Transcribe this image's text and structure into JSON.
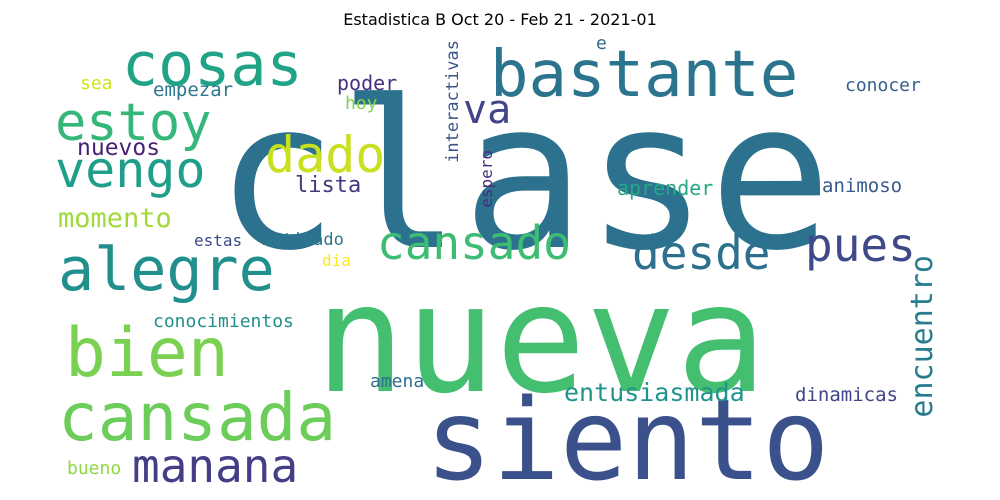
{
  "title": "Estadistica B Oct 20 - Feb 21 - 2021-01",
  "words": [
    {
      "text": "clase",
      "color": "#2c728e"
    },
    {
      "text": "nueva",
      "color": "#44bf70"
    },
    {
      "text": "siento",
      "color": "#3b518b"
    },
    {
      "text": "bastante",
      "color": "#2b748e"
    },
    {
      "text": "cosas",
      "color": "#20a386"
    },
    {
      "text": "estoy",
      "color": "#35b779"
    },
    {
      "text": "dado",
      "color": "#c8e020"
    },
    {
      "text": "vengo",
      "color": "#1f9e89"
    },
    {
      "text": "alegre",
      "color": "#21908d"
    },
    {
      "text": "bien",
      "color": "#7ad151"
    },
    {
      "text": "cansada",
      "color": "#6ccd5a"
    },
    {
      "text": "manana",
      "color": "#433e85"
    },
    {
      "text": "cansado",
      "color": "#3dbc74"
    },
    {
      "text": "desde",
      "color": "#2d708e"
    },
    {
      "text": "pues",
      "color": "#3e4989"
    },
    {
      "text": "momento",
      "color": "#a0da39"
    },
    {
      "text": "nuevos",
      "color": "#482173"
    },
    {
      "text": "va",
      "color": "#414487"
    },
    {
      "text": "lista",
      "color": "#453781"
    },
    {
      "text": "empezar",
      "color": "#2a788e"
    },
    {
      "text": "sea",
      "color": "#d2e21b"
    },
    {
      "text": "poder",
      "color": "#46327e"
    },
    {
      "text": "hoy",
      "color": "#84d44b"
    },
    {
      "text": "interactivas",
      "color": "#3b528b"
    },
    {
      "text": "e",
      "color": "#31688e"
    },
    {
      "text": "espero",
      "color": "#472d7b"
    },
    {
      "text": "conocer",
      "color": "#355f8d"
    },
    {
      "text": "aprender",
      "color": "#22a884"
    },
    {
      "text": "animoso",
      "color": "#375b8d"
    },
    {
      "text": "estas",
      "color": "#3e4a89"
    },
    {
      "text": "motivado",
      "color": "#29798e"
    },
    {
      "text": "dia",
      "color": "#fde725"
    },
    {
      "text": "encuentro",
      "color": "#287c8e"
    },
    {
      "text": "conocimientos",
      "color": "#218f8d"
    },
    {
      "text": "entusiasmada",
      "color": "#1f948c"
    },
    {
      "text": "amena",
      "color": "#2e6e8e"
    },
    {
      "text": "dinamicas",
      "color": "#404688"
    },
    {
      "text": "bueno",
      "color": "#8fd744"
    }
  ]
}
